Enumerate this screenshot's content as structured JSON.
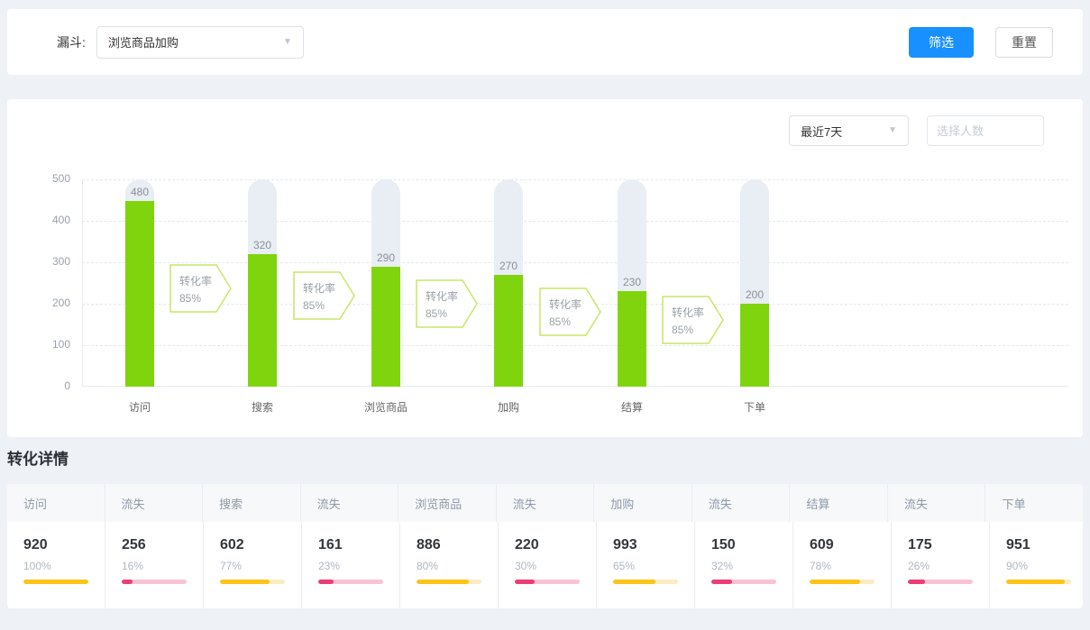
{
  "filter_bar": {
    "label": "漏斗:",
    "funnel_select": {
      "value": "浏览商品加购"
    },
    "filter_button": "筛选",
    "reset_button": "重置"
  },
  "chart_panel": {
    "range_select": {
      "value": "最近7天"
    },
    "people_input": {
      "placeholder": "选择人数"
    }
  },
  "chart_data": {
    "type": "bar",
    "title": "",
    "categories": [
      "访问",
      "搜索",
      "浏览商品",
      "加购",
      "结算",
      "下单"
    ],
    "values": [
      480,
      320,
      290,
      270,
      230,
      200
    ],
    "ylim": [
      0,
      500
    ],
    "y_ticks": [
      500,
      400,
      300,
      200,
      100,
      0
    ],
    "grid": "horizontal-dashed",
    "legend": "none",
    "bar_color": "#80d40e",
    "bar_track_color": "#e9edf4",
    "conversions": [
      {
        "label": "转化率",
        "value": "85%"
      },
      {
        "label": "转化率",
        "value": "85%"
      },
      {
        "label": "转化率",
        "value": "85%"
      },
      {
        "label": "转化率",
        "value": "85%"
      },
      {
        "label": "转化率",
        "value": "85%"
      }
    ]
  },
  "details": {
    "title": "转化详情",
    "columns": [
      {
        "header": "访问",
        "value": "920",
        "percent": "100%",
        "type": "stage"
      },
      {
        "header": "流失",
        "value": "256",
        "percent": "16%",
        "type": "churn"
      },
      {
        "header": "搜索",
        "value": "602",
        "percent": "77%",
        "type": "stage"
      },
      {
        "header": "流失",
        "value": "161",
        "percent": "23%",
        "type": "churn"
      },
      {
        "header": "浏览商品",
        "value": "886",
        "percent": "80%",
        "type": "stage"
      },
      {
        "header": "流失",
        "value": "220",
        "percent": "30%",
        "type": "churn"
      },
      {
        "header": "加购",
        "value": "993",
        "percent": "65%",
        "type": "stage"
      },
      {
        "header": "流失",
        "value": "150",
        "percent": "32%",
        "type": "churn"
      },
      {
        "header": "结算",
        "value": "609",
        "percent": "78%",
        "type": "stage"
      },
      {
        "header": "流失",
        "value": "175",
        "percent": "26%",
        "type": "churn"
      },
      {
        "header": "下单",
        "value": "951",
        "percent": "90%",
        "type": "stage"
      }
    ]
  },
  "colors": {
    "primary_blue": "#1890ff",
    "funnel_green": "#80d40e",
    "bar_track": "#e9edf4",
    "stage_gold": "#fbc419",
    "churn_pink": "#ec3d74",
    "page_background": "#eef1f6"
  }
}
